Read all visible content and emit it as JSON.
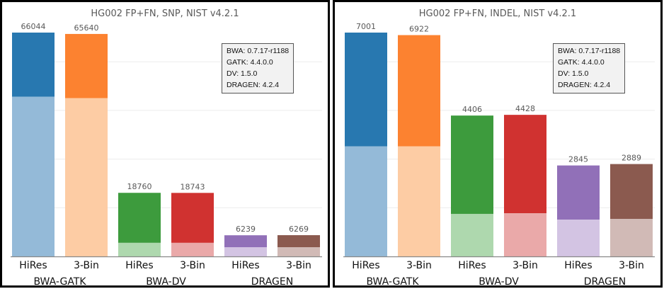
{
  "chart_data": [
    {
      "type": "bar",
      "stacked": true,
      "title": "HG002 FP+FN, SNP, NIST v4.2.1",
      "groups": [
        "BWA-GATK",
        "BWA-DV",
        "DRAGEN"
      ],
      "categories": [
        "HiRes",
        "3-Bin",
        "HiRes",
        "3-Bin",
        "HiRes",
        "3-Bin"
      ],
      "totals": [
        66044,
        65640,
        18760,
        18743,
        6239,
        6269
      ],
      "lower_segment_estimate": [
        47100,
        46700,
        4000,
        4000,
        2700,
        2700
      ],
      "colors_dark": [
        "#2878b0",
        "#fc8230",
        "#3d9b3d",
        "#d03230",
        "#9170b8",
        "#8b5a4f"
      ],
      "colors_light": [
        "#94bad8",
        "#fdcca4",
        "#aed8ae",
        "#eaa9a9",
        "#d3c4e3",
        "#d1bab6"
      ],
      "ylim": [
        0,
        66044
      ],
      "grid": true,
      "legend_lines": [
        "BWA:  0.7.17-r1188",
        "GATK:  4.4.0.0",
        "DV:  1.5.0",
        "DRAGEN:  4.2.4"
      ],
      "legend_position": "top-right"
    },
    {
      "type": "bar",
      "stacked": true,
      "title": "HG002 FP+FN, INDEL, NIST v4.2.1",
      "groups": [
        "BWA-GATK",
        "BWA-DV",
        "DRAGEN"
      ],
      "categories": [
        "HiRes",
        "3-Bin",
        "HiRes",
        "3-Bin",
        "HiRes",
        "3-Bin"
      ],
      "totals": [
        7001,
        6922,
        4406,
        4428,
        2845,
        2889
      ],
      "lower_segment_estimate": [
        3440,
        3440,
        1330,
        1350,
        1150,
        1170
      ],
      "colors_dark": [
        "#2878b0",
        "#fc8230",
        "#3d9b3d",
        "#d03230",
        "#9170b8",
        "#8b5a4f"
      ],
      "colors_light": [
        "#94bad8",
        "#fdcca4",
        "#aed8ae",
        "#eaa9a9",
        "#d3c4e3",
        "#d1bab6"
      ],
      "ylim": [
        0,
        7001
      ],
      "grid": true,
      "legend_lines": [
        "BWA:  0.7.17-r1188",
        "GATK:  4.4.0.0",
        "DV:  1.5.0",
        "DRAGEN:  4.2.4"
      ],
      "legend_position": "top-right"
    }
  ]
}
